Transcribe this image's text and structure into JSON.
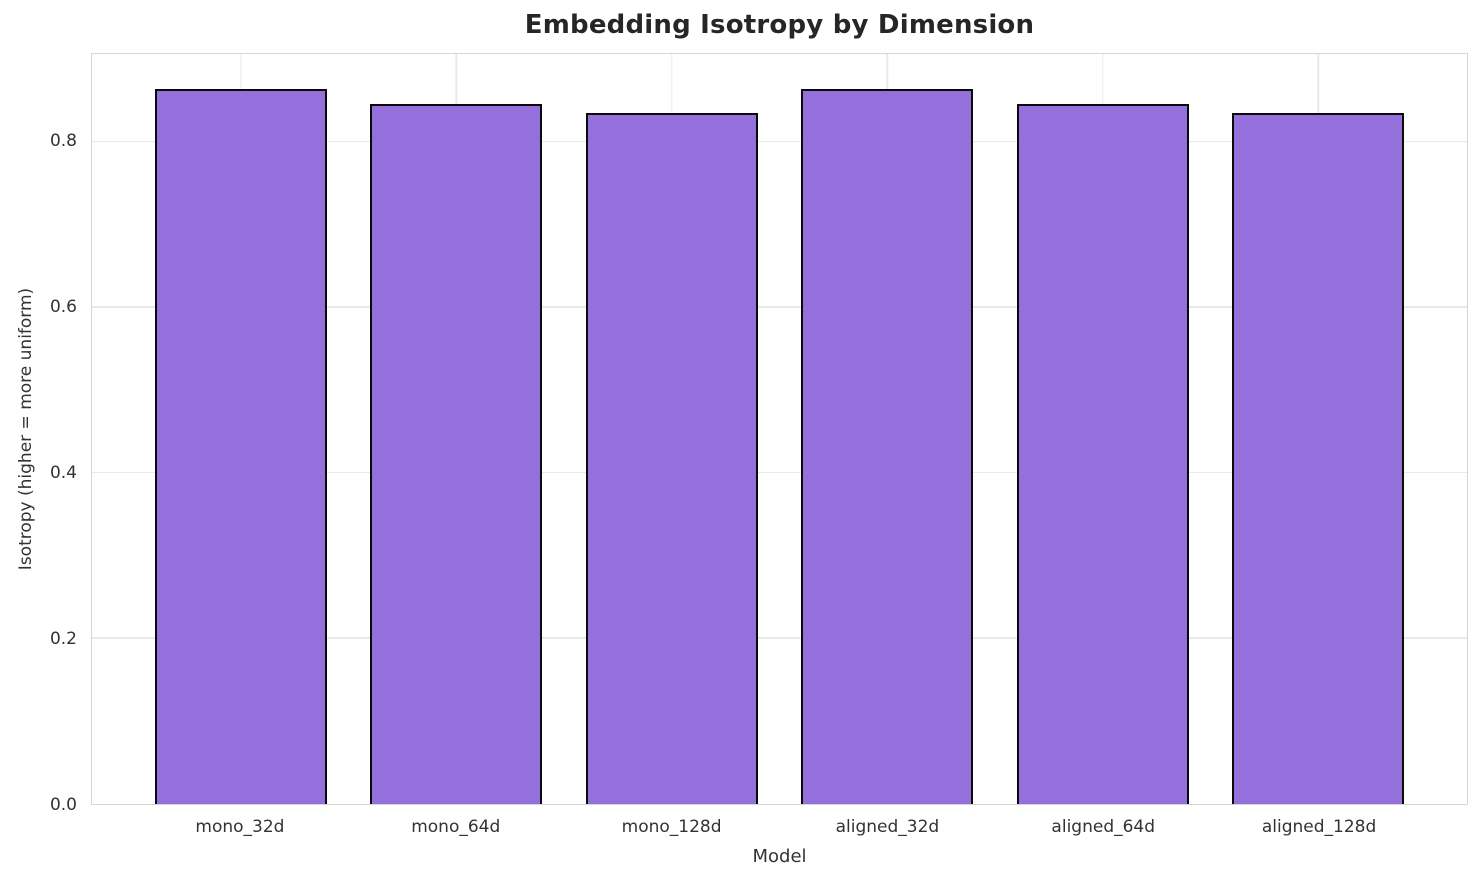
{
  "chart_data": {
    "type": "bar",
    "title": "Embedding Isotropy by Dimension",
    "xlabel": "Model",
    "ylabel": "Isotropy (higher = more uniform)",
    "categories": [
      "mono_32d",
      "mono_64d",
      "mono_128d",
      "aligned_32d",
      "aligned_64d",
      "aligned_128d"
    ],
    "values": [
      0.865,
      0.847,
      0.836,
      0.865,
      0.847,
      0.836
    ],
    "ylim": [
      0,
      0.907
    ],
    "xlim": [
      -0.69,
      5.69
    ],
    "bar_width_units": 0.8,
    "yticks": [
      0.0,
      0.2,
      0.4,
      0.6,
      0.8
    ],
    "ytick_labels": [
      "0.0",
      "0.2",
      "0.4",
      "0.6",
      "0.8"
    ],
    "grid": true,
    "grid_vertical_at_categories": true,
    "legend_position": "none",
    "bar_fill_color": "#9370DB",
    "bar_edge_color": "#0a0a0a",
    "title_color": "#262626",
    "tick_label_color": "#333333",
    "grid_color": "#e9e9e9",
    "spine_color": "#d6d6d6",
    "background_color": "#ffffff"
  }
}
